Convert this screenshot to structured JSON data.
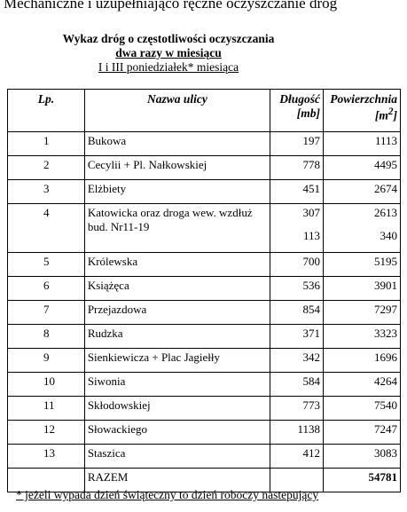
{
  "header": {
    "title": "Mechaniczne i uzupełniająco ręczne oczyszczanie dróg"
  },
  "notice": {
    "title": "Wykaz dróg o częstotliwości oczyszczania",
    "frequency": "dwa razy w miesiącu",
    "schedule": "I i III poniedziałek* miesiąca"
  },
  "table": {
    "columns": [
      {
        "label": "Lp."
      },
      {
        "label": "Nazwa ulicy"
      },
      {
        "label": "Długość",
        "unit": [
          "[mb]"
        ]
      },
      {
        "label": "Powierzchnia",
        "unit": [
          "[m",
          "2",
          "]"
        ]
      }
    ],
    "rows": [
      {
        "lp": 1,
        "name": "Bukowa",
        "length": [
          197
        ],
        "area": [
          1113
        ]
      },
      {
        "lp": 2,
        "name": "Cecylii + Pl. Nałkowskiej",
        "length": [
          778
        ],
        "area": [
          4495
        ]
      },
      {
        "lp": 3,
        "name": "Elżbiety",
        "length": [
          451
        ],
        "area": [
          2674
        ]
      },
      {
        "lp": 4,
        "name": "Katowicka oraz droga wew. wzdłuż bud. Nr11-19",
        "length": [
          307,
          113
        ],
        "area": [
          2613,
          340
        ]
      },
      {
        "lp": 5,
        "name": "Królewska",
        "length": [
          700
        ],
        "area": [
          5195
        ]
      },
      {
        "lp": 6,
        "name": "Książęca",
        "length": [
          536
        ],
        "area": [
          3901
        ]
      },
      {
        "lp": 7,
        "name": "Przejazdowa",
        "length": [
          854
        ],
        "area": [
          7297
        ]
      },
      {
        "lp": 8,
        "name": "Rudzka",
        "length": [
          371
        ],
        "area": [
          3323
        ]
      },
      {
        "lp": 9,
        "name": "Sienkiewicza + Plac Jagiełły",
        "length": [
          342
        ],
        "area": [
          1696
        ]
      },
      {
        "lp": 10,
        "name": "Siwonia",
        "length": [
          584
        ],
        "area": [
          4264
        ]
      },
      {
        "lp": 11,
        "name": "Skłodowskiej",
        "length": [
          773
        ],
        "area": [
          7540
        ]
      },
      {
        "lp": 12,
        "name": "Słowackiego",
        "length": [
          1138
        ],
        "area": [
          7247
        ]
      },
      {
        "lp": 13,
        "name": "Staszica",
        "length": [
          412
        ],
        "area": [
          3083
        ]
      }
    ],
    "total": {
      "label": "RAZEM",
      "area": 54781
    }
  },
  "footnote": "* jeżeli wypada dzień świąteczny to dzień roboczy nastepujący"
}
